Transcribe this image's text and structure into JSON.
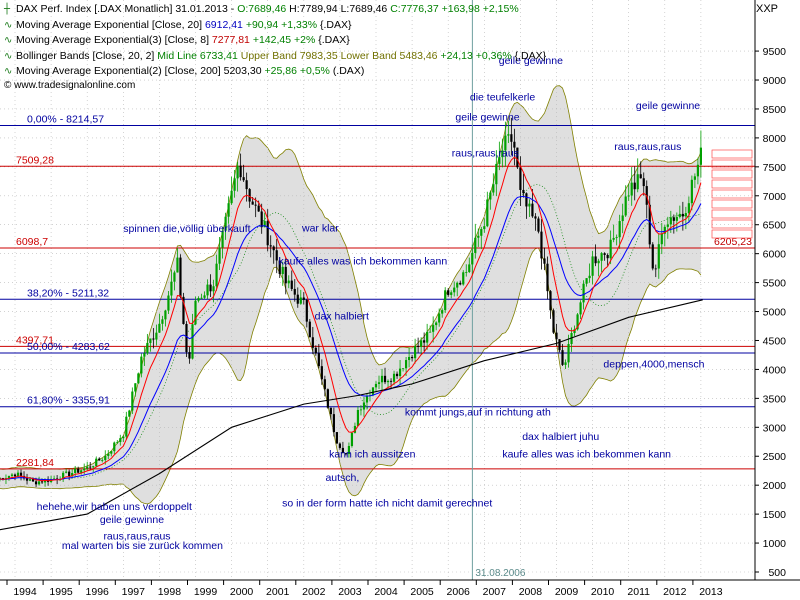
{
  "legend": {
    "l1": {
      "name": "DAX Perf. Index [.DAX  Monatlich] 31.01.2013 - ",
      "o": "O:7689,46",
      "h": "H:7789,94",
      "l": "L:7689,46",
      "c": "C:7776,37",
      "chg": "+163,98 +2,15%"
    },
    "l2": {
      "name": "Moving Average Exponential [Close, 20]",
      "val": "6912,41",
      "chg": "+90,94 +1,33%",
      "sym": "{.DAX}"
    },
    "l3": {
      "name": "Moving Average Exponential(3) [Close, 8]",
      "val": "7277,81",
      "chg": "+142,45 +2%",
      "sym": "{.DAX}"
    },
    "l4": {
      "name": "Bollinger Bands [Close, 20, 2]",
      "mid": "Mid Line 6733,41",
      "up": "Upper Band 7983,35",
      "low": "Lower Band 5483,46",
      "chg": "+24,13 +0,36%",
      "sym": "{.DAX}"
    },
    "l5": {
      "name": "Moving Average Exponential(2) [Close, 200]",
      "val": "5203,30",
      "chg": "+25,86 +0,5%",
      "sym": "(.DAX)"
    },
    "source": "www.tradesignalonline.com",
    "symbol": "XXP"
  },
  "colors": {
    "up_candle": "#00a000",
    "down_candle": "#000000",
    "ema20": "#0000ff",
    "ema8": "#ff0000",
    "ema200": "#000000",
    "bb_fill": "#d9d9d9",
    "bb_line": "#808000",
    "bb_mid": "#008000",
    "fib_line": "#0000a0",
    "level_line": "#cc0000",
    "annotation": "#0000a0",
    "grid": "#b8b8b8"
  },
  "chart_data": {
    "type": "candlestick",
    "title": "DAX Perf. Index [.DAX Monatlich]",
    "ylim": [
      400,
      10000
    ],
    "xlim": [
      1993.5,
      2013.4
    ],
    "y_ticks": [
      500,
      1000,
      1500,
      2000,
      2500,
      3000,
      3500,
      4000,
      4500,
      5000,
      5500,
      6000,
      6500,
      7000,
      7500,
      8000,
      8500,
      9000,
      9500
    ],
    "y_tick_labels": [
      "500",
      "1000",
      "1500",
      "2000",
      "2500",
      "3000",
      "3500",
      "4000",
      "4500",
      "5000",
      "5500",
      "6000",
      "6500",
      "7000",
      "7500",
      "8000",
      "8500",
      "9000",
      "9500"
    ],
    "x_ticks": [
      1994,
      1995,
      1996,
      1997,
      1998,
      1999,
      2000,
      2001,
      2002,
      2003,
      2004,
      2005,
      2006,
      2007,
      2008,
      2009,
      2010,
      2011,
      2012,
      2013
    ],
    "x_tick_labels": [
      "1994",
      "1995",
      "1996",
      "1997",
      "1998",
      "1999",
      "2000",
      "2001",
      "2002",
      "2003",
      "2004",
      "2005",
      "2006",
      "2007",
      "2008",
      "2009",
      "2010",
      "2011",
      "2012",
      "2013"
    ],
    "series": [
      {
        "name": "DAX Close",
        "x": [
          1993.5,
          1994.0,
          1994.5,
          1995.0,
          1995.5,
          1996.0,
          1996.5,
          1997.0,
          1997.5,
          1998.0,
          1998.5,
          1998.8,
          1999.0,
          1999.5,
          2000.0,
          2000.2,
          2000.5,
          2001.0,
          2001.5,
          2002.0,
          2002.5,
          2002.9,
          2003.2,
          2003.5,
          2004.0,
          2004.5,
          2005.0,
          2005.5,
          2006.0,
          2006.5,
          2007.0,
          2007.5,
          2007.8,
          2008.0,
          2008.5,
          2008.9,
          2009.2,
          2009.5,
          2010.0,
          2010.5,
          2011.0,
          2011.4,
          2011.7,
          2012.0,
          2012.5,
          2013.05
        ],
        "y": [
          2100,
          2200,
          2050,
          2100,
          2200,
          2300,
          2500,
          2900,
          4200,
          4800,
          5800,
          4000,
          5200,
          5500,
          7000,
          7600,
          7000,
          6300,
          5500,
          5100,
          3800,
          2800,
          2500,
          3300,
          3800,
          3900,
          4300,
          4600,
          5400,
          5700,
          6600,
          7800,
          8000,
          7000,
          6400,
          4700,
          4000,
          4800,
          5900,
          6100,
          7100,
          7300,
          5600,
          6600,
          6700,
          7776
        ]
      },
      {
        "name": "EMA 200",
        "x": [
          1993.3,
          1996,
          1998,
          2000,
          2002,
          2003.5,
          2005,
          2007,
          2009,
          2011,
          2013.05
        ],
        "y": [
          1200,
          1500,
          2200,
          3000,
          3400,
          3550,
          3750,
          4150,
          4450,
          4900,
          5203
        ]
      }
    ],
    "horizontal_levels": [
      {
        "label": "0,00% - 8214,57",
        "value": 8214.57,
        "kind": "fib"
      },
      {
        "label": "7509,28",
        "value": 7509.28,
        "kind": "level"
      },
      {
        "label": "6098,7",
        "value": 6098.7,
        "kind": "level"
      },
      {
        "label": "38,20% - 5211,32",
        "value": 5211.32,
        "kind": "fib"
      },
      {
        "label": "4397,71",
        "value": 4397.71,
        "kind": "level"
      },
      {
        "label": "50,00% - 4283,62",
        "value": 4283.62,
        "kind": "fib"
      },
      {
        "label": "61,80% - 3355,91",
        "value": 3355.91,
        "kind": "fib"
      },
      {
        "label": "2281,84",
        "value": 2281.84,
        "kind": "level"
      }
    ],
    "vertical_marker": {
      "label": "31.08.2006",
      "x": 2006.67
    },
    "side_label": {
      "text": "6205,23",
      "value": 6205.23
    },
    "annotations": [
      {
        "text": "geile gewinne",
        "x": 2007.4,
        "y": 9280
      },
      {
        "text": "die teufelkerle",
        "x": 2006.6,
        "y": 8650
      },
      {
        "text": "geile gewinne",
        "x": 2006.2,
        "y": 8300
      },
      {
        "text": "geile gewinne",
        "x": 2011.2,
        "y": 8500
      },
      {
        "text": "raus,raus,raus",
        "x": 2006.1,
        "y": 7680
      },
      {
        "text": "raus,raus,raus",
        "x": 2010.6,
        "y": 7790
      },
      {
        "text": "spinnen die,völlig überkauft",
        "x": 1997.0,
        "y": 6370
      },
      {
        "text": "war klar",
        "x": 2001.95,
        "y": 6380
      },
      {
        "text": "kaufe alles was ich bekommen kann",
        "x": 2001.3,
        "y": 5810
      },
      {
        "text": "dax halbiert",
        "x": 2002.3,
        "y": 4860
      },
      {
        "text": "deppen,4000,mensch",
        "x": 2010.3,
        "y": 4030
      },
      {
        "text": "kommt jungs,auf in richtung ath",
        "x": 2004.8,
        "y": 3200
      },
      {
        "text": "dax halbiert juhu",
        "x": 2008.05,
        "y": 2780
      },
      {
        "text": "kaufe alles was ich bekommen kann",
        "x": 2007.5,
        "y": 2480
      },
      {
        "text": "kann ich aussitzen",
        "x": 2002.7,
        "y": 2480
      },
      {
        "text": "autsch,",
        "x": 2002.6,
        "y": 2070
      },
      {
        "text": "so in der form hatte ich nicht damit gerechnet",
        "x": 2001.4,
        "y": 1630
      },
      {
        "text": "hehehe,wir haben uns verdoppelt",
        "x": 1994.6,
        "y": 1570
      },
      {
        "text": "geile gewinne",
        "x": 1996.35,
        "y": 1350
      },
      {
        "text": "raus,raus,raus",
        "x": 1996.45,
        "y": 1060
      },
      {
        "text": "mal warten bis sie zurück kommen",
        "x": 1995.3,
        "y": 900
      }
    ]
  }
}
